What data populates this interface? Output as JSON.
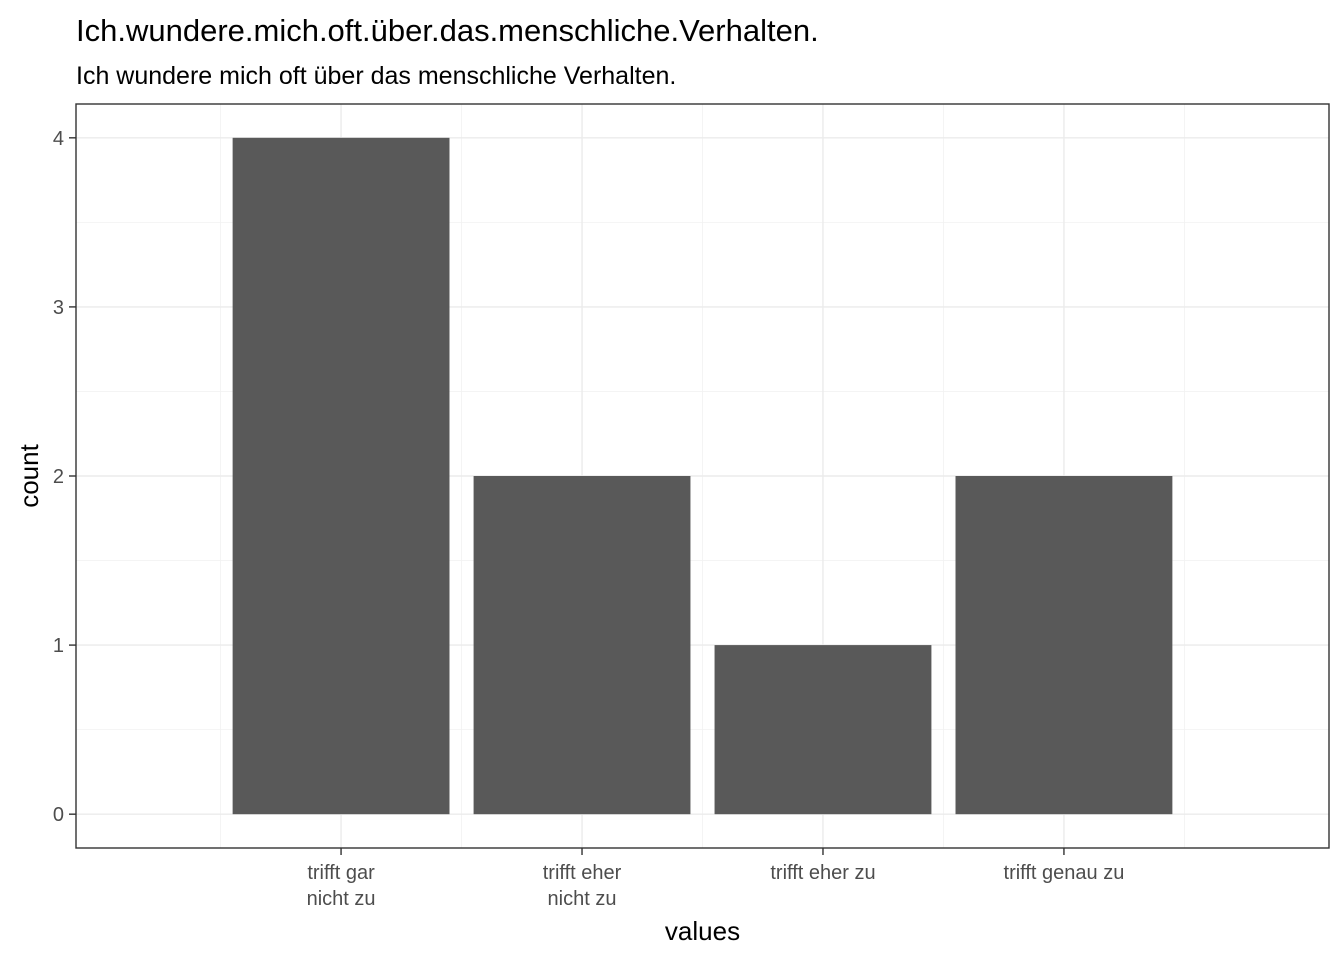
{
  "chart_data": {
    "type": "bar",
    "title": "Ich.wundere.mich.oft.über.das.menschliche.Verhalten.",
    "subtitle": "Ich wundere mich oft über das menschliche Verhalten.",
    "xlabel": "values",
    "ylabel": "count",
    "categories": [
      [
        "trifft gar",
        "nicht zu"
      ],
      [
        "trifft eher",
        "nicht zu"
      ],
      [
        "trifft eher zu"
      ],
      [
        "trifft genau zu"
      ]
    ],
    "values": [
      4,
      2,
      1,
      2
    ],
    "ylim": [
      -0.2,
      4.2
    ],
    "yticks": [
      0,
      1,
      2,
      3,
      4
    ],
    "bar_color": "#595959",
    "grid": true
  }
}
